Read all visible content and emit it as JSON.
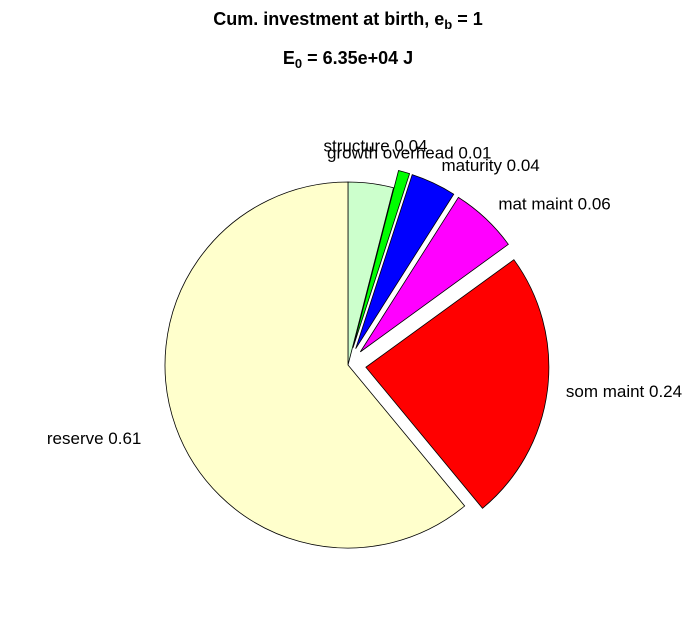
{
  "chart_data": {
    "type": "pie",
    "title": {
      "text": "Cum. investment at birth, e",
      "sub": "b",
      "tail": " = 1"
    },
    "subtitle": {
      "text": "E",
      "sub": "0",
      "tail": " = 6.35e+04 J"
    },
    "values": [
      0.04,
      0.01,
      0.04,
      0.06,
      0.24,
      0.61
    ],
    "value_labels": [
      "structure 0.04",
      "growth overhead 0.01",
      "maturity 0.04",
      "mat maint 0.06",
      "som maint 0.24",
      "reserve 0.61"
    ],
    "colors": [
      "#ccffcc",
      "#00ff00",
      "#0000ff",
      "#ff00ff",
      "#ff0000",
      "#ffffcc"
    ],
    "explode": [
      0,
      1,
      1,
      1,
      1,
      0
    ]
  }
}
